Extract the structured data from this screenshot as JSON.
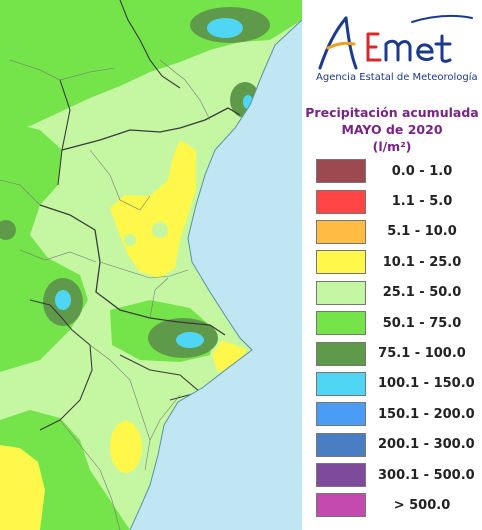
{
  "brand": {
    "logo_text": "AEmet",
    "agency": "Agencia Estatal de Meteorología"
  },
  "title": {
    "line1": "Precipitación acumulada",
    "line2": "MAYO de 2020",
    "unit": "(l/m²)"
  },
  "legend": [
    {
      "label": "0.0 - 1.0",
      "color": "#9c4a4f"
    },
    {
      "label": "1.1 - 5.0",
      "color": "#ff4545"
    },
    {
      "label": "5.1 - 10.0",
      "color": "#ffbb44"
    },
    {
      "label": "10.1 - 25.0",
      "color": "#fff74a"
    },
    {
      "label": "25.1 - 50.0",
      "color": "#c5f7a3"
    },
    {
      "label": "50.1 - 75.0",
      "color": "#74e44a"
    },
    {
      "label": "75.1 - 100.0",
      "color": "#5f9a4a"
    },
    {
      "label": "100.1 - 150.0",
      "color": "#4fd6f5"
    },
    {
      "label": "150.1 - 200.0",
      "color": "#4a9cf5"
    },
    {
      "label": "200.1 - 300.0",
      "color": "#4a7ec4"
    },
    {
      "label": "300.1 - 500.0",
      "color": "#7e4a9c"
    },
    {
      "label": "> 500.0",
      "color": "#c44ab0"
    }
  ],
  "map_colors": {
    "sea": "#bfe6f2",
    "land_base": "#c5f7a3"
  }
}
